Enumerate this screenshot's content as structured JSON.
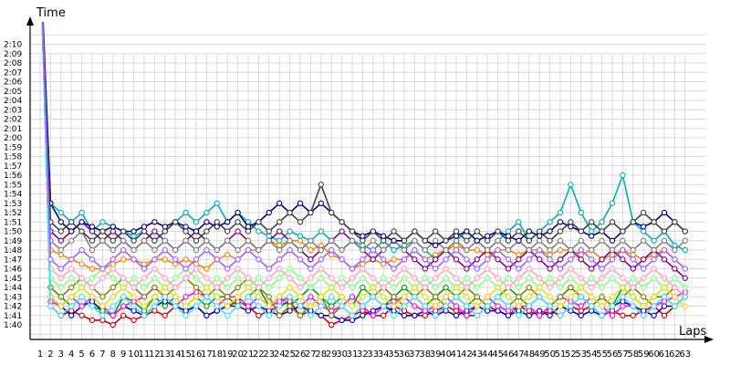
{
  "chart_data": {
    "type": "line",
    "title": "",
    "ylabel": "Time",
    "xlabel": "Laps",
    "grid": true,
    "legend": "none",
    "x_range": [
      1,
      63
    ],
    "y_range_seconds": [
      99,
      131
    ],
    "y_ticks": [
      "1:40",
      "1:41",
      "1:42",
      "1:43",
      "1:44",
      "1:45",
      "1:46",
      "1:47",
      "1:48",
      "1:49",
      "1:50",
      "1:51",
      "1:52",
      "1:53",
      "1:54",
      "1:55",
      "1:56",
      "1:57",
      "1:58",
      "1:59",
      "2:00",
      "2:01",
      "2:02",
      "2:03",
      "2:04",
      "2:05",
      "2:06",
      "2:07",
      "2:08",
      "2:09",
      "2:10"
    ],
    "x_ticks": [
      "1",
      "2",
      "3",
      "4",
      "5",
      "6",
      "7",
      "8",
      "9",
      "10",
      "11",
      "12",
      "13",
      "14",
      "15",
      "16",
      "17",
      "18",
      "19",
      "20",
      "21",
      "22",
      "23",
      "24",
      "25",
      "26",
      "27",
      "28",
      "29",
      "30",
      "31",
      "32",
      "33",
      "34",
      "35",
      "36",
      "37",
      "38",
      "39",
      "40",
      "41",
      "42",
      "43",
      "44",
      "45",
      "46",
      "47",
      "48",
      "49",
      "50",
      "51",
      "52",
      "53",
      "54",
      "55",
      "56",
      "57",
      "58",
      "59",
      "60",
      "61",
      "62",
      "63"
    ],
    "note_units": "y values are lap times in seconds; values above 131 run off the top of the plot",
    "series": [
      {
        "color": "#d00000",
        "values": [
          140,
          102,
          101,
          101.5,
          101,
          100.5,
          100.5,
          100,
          101,
          100.5,
          101,
          101.5,
          101,
          102,
          101.5,
          102,
          101,
          101.5,
          102,
          102.5,
          102,
          101,
          101.5,
          102,
          102.5,
          101,
          101.5,
          101,
          100,
          100.5,
          101,
          101.5,
          101,
          101,
          102,
          101.5,
          101,
          101,
          101.5,
          102,
          101.5,
          101,
          101,
          102,
          101.5,
          101,
          102,
          101.5,
          101,
          101.5,
          101,
          102,
          101.5,
          102,
          101,
          101.5,
          101,
          101,
          101.5,
          102,
          101,
          102,
          103
        ]
      },
      {
        "color": "#0000c0",
        "values": [
          140,
          103,
          102,
          101,
          102,
          102.5,
          101.5,
          101,
          102,
          101.5,
          101,
          102,
          102.5,
          102,
          101.5,
          102,
          101,
          101.5,
          102,
          102,
          101.5,
          102,
          101.5,
          101,
          101.5,
          102,
          101.5,
          101,
          101,
          100.5,
          100.5,
          101,
          101.5,
          102,
          101.5,
          101,
          101,
          101.5,
          101,
          101.5,
          101,
          101.5,
          102,
          101.5,
          101.5,
          101,
          101.5,
          101,
          101.5,
          101,
          102,
          101.5,
          101,
          101.5,
          101,
          102,
          102.5,
          102,
          101.5,
          101,
          102,
          102,
          103
        ]
      },
      {
        "color": "#00a000",
        "values": [
          140,
          104,
          103,
          102,
          103,
          102,
          101.5,
          101,
          103,
          102.5,
          101.5,
          103,
          102,
          103,
          102,
          103,
          102,
          103,
          103,
          102,
          103,
          104,
          102,
          103,
          102,
          103,
          104,
          103,
          102,
          103,
          102,
          104,
          103,
          102,
          103,
          104,
          103,
          102,
          103,
          104,
          103,
          102,
          103,
          102,
          103,
          104,
          103,
          102,
          103,
          102,
          103,
          104,
          103,
          102,
          103,
          102,
          104,
          103,
          102,
          103,
          103,
          102,
          103
        ]
      },
      {
        "color": "#ff00ff",
        "values": [
          140,
          102.5,
          102,
          103,
          102,
          103,
          102,
          101,
          102,
          102.5,
          103,
          104,
          103,
          102,
          103,
          103.5,
          103,
          102,
          103,
          103,
          102,
          103,
          102,
          102.5,
          103,
          102,
          103,
          102,
          101.5,
          102,
          103,
          102,
          101,
          102,
          102.5,
          103,
          102,
          101.5,
          102,
          103,
          102,
          101,
          102,
          103,
          102,
          101.5,
          102,
          102,
          101,
          102,
          103,
          102.5,
          102,
          103,
          102,
          101,
          102,
          102,
          101,
          102,
          102.5,
          103,
          103.5
        ]
      },
      {
        "color": "#ff8000",
        "values": [
          140,
          108,
          107.5,
          107,
          106.5,
          106,
          106,
          106.5,
          107,
          107,
          106.5,
          107,
          107,
          106.5,
          107,
          106.5,
          106,
          107,
          107.5,
          107,
          108,
          108,
          109,
          108.5,
          109,
          109,
          108,
          108.5,
          107.5,
          107,
          106,
          106.5,
          107,
          106.5,
          107,
          107,
          108,
          107,
          107.5,
          108,
          108.5,
          108,
          108,
          107.5,
          108,
          108,
          107.5,
          108,
          108,
          107.5,
          108,
          108,
          107.5,
          108,
          107,
          107.5,
          108,
          107.5,
          107,
          107.5,
          108,
          107,
          106
        ]
      },
      {
        "color": "#00b0b0",
        "values": [
          140,
          113,
          112,
          111,
          112,
          110,
          111,
          110.5,
          110,
          109.5,
          110,
          109,
          110,
          111,
          112,
          111,
          112,
          113,
          111,
          112,
          111,
          110,
          109.5,
          109,
          110,
          109.5,
          109,
          110,
          109,
          108,
          109,
          108.5,
          108,
          109,
          108,
          108.5,
          109,
          108,
          107,
          108,
          109,
          110,
          109,
          108,
          109,
          110,
          111,
          109,
          110,
          111,
          112,
          115,
          112,
          110,
          111,
          113,
          116,
          111,
          110,
          109,
          110,
          108.5,
          108
        ]
      },
      {
        "color": "#808000",
        "values": [
          140,
          104,
          103,
          104,
          105,
          104,
          103,
          104,
          105,
          104,
          103,
          104,
          103,
          104,
          105,
          104,
          103,
          104,
          103,
          104,
          105,
          104,
          103,
          101,
          102,
          101,
          102,
          103,
          101,
          102,
          101,
          102,
          103,
          104,
          103,
          102,
          103,
          104,
          103,
          102,
          103,
          104,
          103,
          102,
          103,
          102,
          103,
          104,
          103,
          102,
          103,
          104,
          103,
          102,
          103,
          102,
          103,
          104,
          103,
          102,
          103,
          104,
          103
        ]
      },
      {
        "color": "#800080",
        "values": [
          140,
          110,
          109,
          110,
          111,
          110,
          109,
          110,
          109,
          108,
          109,
          110,
          109,
          108,
          109,
          110,
          109,
          108,
          109,
          110,
          109,
          108,
          109,
          110,
          109,
          108,
          107,
          108,
          109,
          110,
          109,
          108,
          107,
          108,
          109,
          108,
          107,
          106,
          107,
          108,
          107,
          106,
          107,
          108,
          107,
          106,
          107,
          108,
          107,
          106,
          107,
          108,
          107,
          106,
          107,
          108,
          107,
          106,
          107,
          108,
          107,
          106,
          105
        ]
      },
      {
        "color": "#808080",
        "values": [
          140,
          109,
          108,
          109,
          110,
          108,
          109,
          108,
          109,
          108,
          109,
          108,
          109,
          108,
          109,
          108,
          109,
          108,
          109,
          108,
          109,
          108,
          109,
          108,
          109,
          108,
          109,
          108,
          109,
          108,
          109,
          108,
          109,
          108,
          109,
          108,
          109,
          108,
          109,
          108,
          109,
          108,
          109,
          108,
          109,
          108,
          109,
          108,
          109,
          108,
          109,
          108,
          109,
          108,
          109,
          108,
          109,
          108,
          109,
          108,
          109,
          108,
          109
        ]
      },
      {
        "color": "#000080",
        "values": [
          140,
          113,
          111,
          110,
          111,
          110.5,
          110,
          110.5,
          110,
          110,
          110.5,
          111,
          110.5,
          111,
          110.5,
          110,
          111,
          110.5,
          111,
          112,
          110.5,
          111,
          112,
          113,
          112,
          113,
          112,
          113,
          112,
          111,
          110,
          109.5,
          110,
          109.5,
          109,
          109,
          110,
          109,
          108.5,
          109,
          109.5,
          110,
          109,
          109.5,
          110,
          109.5,
          109,
          110,
          109.5,
          110,
          111,
          110.5,
          110,
          109.5,
          110,
          109,
          110,
          111,
          110.5,
          111,
          112,
          111,
          110
        ]
      },
      {
        "color": "#404040",
        "values": [
          140,
          111,
          110,
          111,
          110,
          109,
          110,
          109,
          110,
          109,
          110,
          109,
          110,
          111,
          110,
          109,
          110,
          111,
          110,
          111,
          110,
          111,
          110,
          111,
          112,
          111,
          112,
          115,
          112,
          111,
          110,
          109,
          110,
          109,
          110,
          109,
          110,
          109,
          110,
          109,
          110,
          109,
          110,
          109,
          110,
          109,
          110,
          109,
          110,
          109,
          110,
          111,
          110,
          111,
          110,
          111,
          110,
          111,
          112,
          111,
          110,
          111,
          110
        ]
      },
      {
        "color": "#80ff80",
        "values": [
          140,
          105,
          104,
          105,
          104,
          105,
          106,
          105,
          104,
          105,
          104,
          105,
          104,
          105,
          106,
          105,
          104,
          105,
          104,
          105,
          104,
          105,
          104,
          105,
          106,
          105,
          104,
          105,
          104,
          105,
          104,
          105,
          104,
          105,
          104,
          105,
          104,
          105,
          104,
          105,
          104,
          105,
          104,
          105,
          104,
          105,
          104,
          105,
          104,
          105,
          104,
          105,
          104,
          105,
          104,
          105,
          104,
          105,
          104,
          105,
          104,
          105,
          104
        ]
      },
      {
        "color": "#ffa0c0",
        "values": [
          140,
          106,
          105,
          106,
          105,
          104,
          105,
          106,
          105,
          104,
          105,
          106,
          105,
          104,
          105,
          106,
          105,
          104,
          105,
          106,
          105,
          104,
          105,
          106,
          105,
          104,
          105,
          106,
          105,
          104,
          105,
          106,
          105,
          104,
          105,
          106,
          105,
          104,
          105,
          106,
          105,
          104,
          105,
          106,
          105,
          104,
          105,
          106,
          105,
          104,
          105,
          106,
          105,
          104,
          105,
          106,
          105,
          104,
          105,
          106,
          105,
          104,
          103
        ]
      },
      {
        "color": "#e0e000",
        "values": [
          140,
          103,
          102,
          103,
          104,
          103,
          102,
          103,
          104,
          103,
          102,
          103,
          104,
          103,
          102,
          103,
          104,
          103,
          102,
          103,
          104,
          103,
          102,
          103,
          104,
          103,
          102,
          103,
          104,
          103,
          102,
          103,
          104,
          103,
          102,
          103,
          104,
          103,
          102,
          103,
          104,
          103,
          102,
          103,
          104,
          103,
          102,
          103,
          104,
          103,
          102,
          103,
          104,
          103,
          102,
          103,
          104,
          103,
          102,
          103,
          104,
          103,
          102
        ]
      },
      {
        "color": "#40e0ff",
        "values": [
          140,
          102,
          101,
          102,
          103,
          102,
          101,
          102,
          103,
          102,
          101,
          102,
          103,
          102,
          101,
          102,
          103,
          102,
          101,
          102,
          103,
          102,
          101,
          102,
          103,
          102,
          101,
          102,
          103,
          102,
          101,
          102,
          103,
          102,
          101,
          102,
          103,
          102,
          101,
          102,
          103,
          102,
          101,
          102,
          103,
          102,
          101,
          102,
          103,
          102,
          101,
          102,
          103,
          102,
          101,
          102,
          103,
          102,
          101,
          102,
          103,
          102,
          103
        ]
      },
      {
        "color": "#a060ff",
        "values": [
          140,
          107,
          106,
          107,
          108,
          107,
          106,
          107,
          108,
          107,
          106,
          107,
          108,
          107,
          106,
          107,
          108,
          107,
          106,
          107,
          108,
          107,
          106,
          107,
          108,
          107,
          106,
          107,
          108,
          107,
          106,
          107,
          108,
          107,
          106,
          107,
          108,
          107,
          106,
          107,
          108,
          107,
          106,
          107,
          108,
          107,
          106,
          107,
          108,
          107,
          106,
          107,
          108,
          107,
          106,
          107,
          108,
          107,
          106,
          107,
          108,
          107,
          106
        ]
      }
    ]
  }
}
